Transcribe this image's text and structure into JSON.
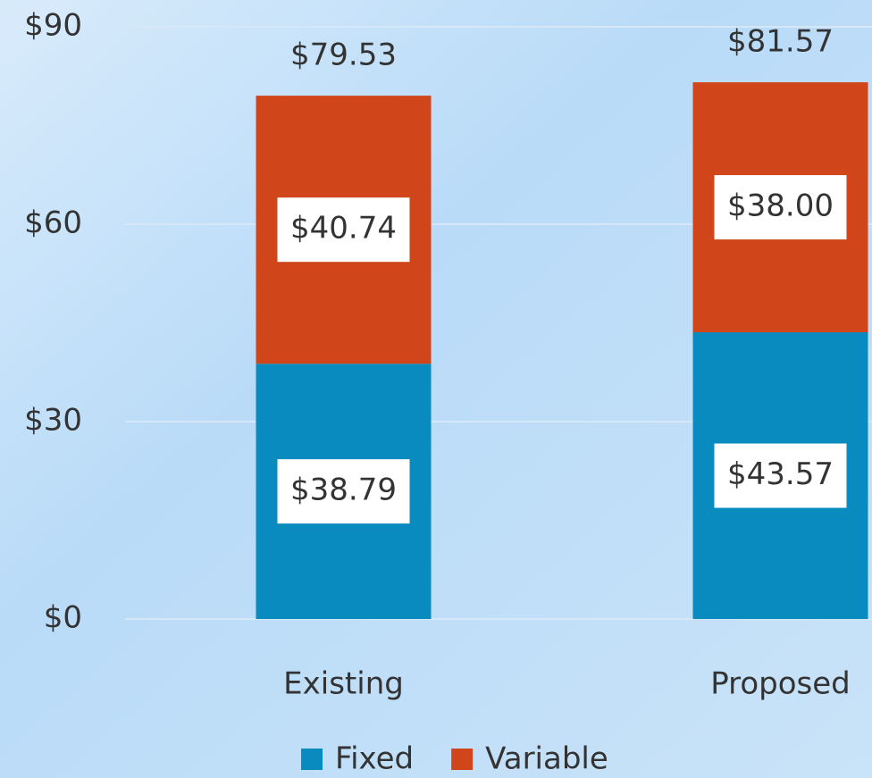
{
  "chart_data": {
    "type": "stacked_bar",
    "categories": [
      "Existing",
      "Proposed"
    ],
    "series": [
      {
        "name": "Fixed",
        "color": "#0a8bbf",
        "values": [
          38.79,
          43.57
        ],
        "value_labels": [
          "$38.79",
          "$43.57"
        ]
      },
      {
        "name": "Variable",
        "color": "#d0461a",
        "values": [
          40.74,
          38.0
        ],
        "value_labels": [
          "$40.74",
          "$38.00"
        ]
      }
    ],
    "total_labels": [
      "$79.53",
      "$81.57"
    ],
    "ylim": [
      0,
      90
    ],
    "yticks": [
      {
        "value": 0,
        "label": "$0"
      },
      {
        "value": 30,
        "label": "$30"
      },
      {
        "value": 60,
        "label": "$60"
      },
      {
        "value": 90,
        "label": "$90"
      }
    ],
    "grid": true,
    "legend": "bottom"
  }
}
